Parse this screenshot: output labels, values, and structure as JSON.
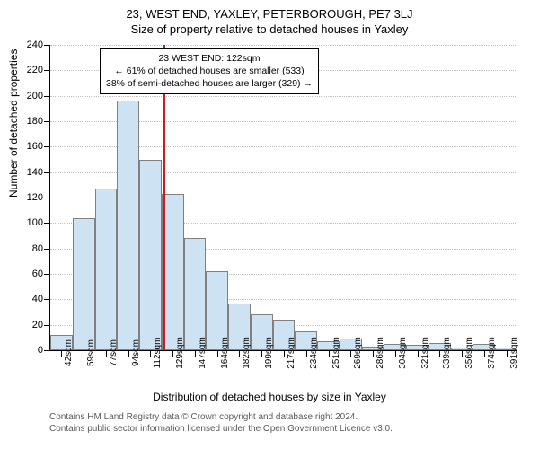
{
  "title": "23, WEST END, YAXLEY, PETERBOROUGH, PE7 3LJ",
  "subtitle": "Size of property relative to detached houses in Yaxley",
  "yAxisLabel": "Number of detached properties",
  "xAxisLabel": "Distribution of detached houses by size in Yaxley",
  "chart": {
    "type": "histogram",
    "barFill": "#cde3f4",
    "barStroke": "#808080",
    "markerColor": "#d11919",
    "markerX": 122,
    "background": "#ffffff",
    "gridColor": "#bfbfbf",
    "ylim": [
      0,
      240
    ],
    "ytickStep": 20,
    "xCategories": [
      "42sqm",
      "59sqm",
      "77sqm",
      "94sqm",
      "112sqm",
      "129sqm",
      "147sqm",
      "164sqm",
      "182sqm",
      "199sqm",
      "217sqm",
      "234sqm",
      "251sqm",
      "269sqm",
      "286sqm",
      "304sqm",
      "321sqm",
      "339sqm",
      "356sqm",
      "374sqm",
      "391sqm"
    ],
    "values": [
      12,
      104,
      127,
      196,
      150,
      123,
      88,
      62,
      37,
      28,
      24,
      15,
      7,
      9,
      3,
      5,
      4,
      6,
      2,
      5,
      2
    ]
  },
  "annotation": {
    "line1": "23 WEST END: 122sqm",
    "line2": "← 61% of detached houses are smaller (533)",
    "line3": "38% of semi-detached houses are larger (329) →"
  },
  "footer": {
    "line1": "Contains HM Land Registry data © Crown copyright and database right 2024.",
    "line2": "Contains public sector information licensed under the Open Government Licence v3.0."
  }
}
